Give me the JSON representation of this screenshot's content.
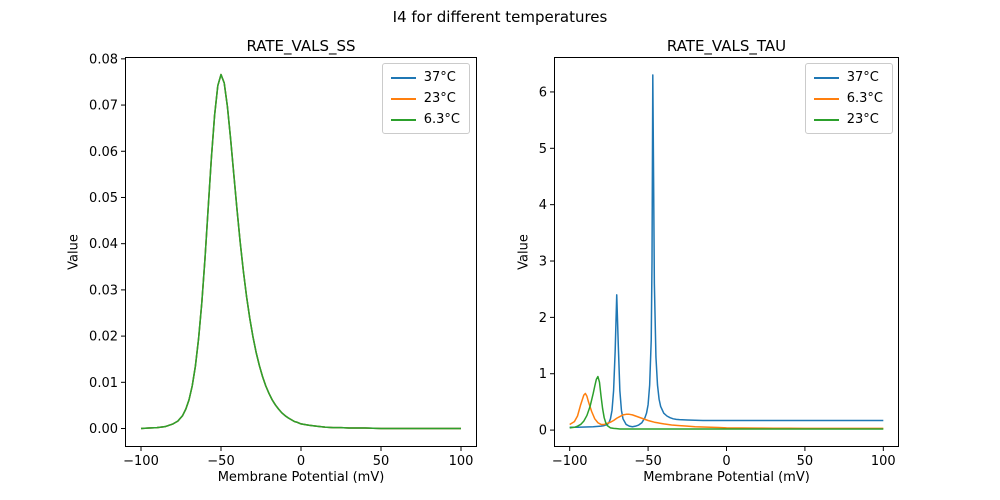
{
  "figure": {
    "suptitle": "I4 for different temperatures",
    "background": "#ffffff"
  },
  "chart_data": [
    {
      "type": "line",
      "title": "RATE_VALS_SS",
      "xlabel": "Membrane Potential (mV)",
      "ylabel": "Value",
      "xlim": [
        -110,
        110
      ],
      "ylim": [
        -0.004,
        0.0804
      ],
      "xticks": [
        -100,
        -50,
        0,
        50,
        100
      ],
      "xticklabels": [
        "−100",
        "−50",
        "0",
        "50",
        "100"
      ],
      "yticks": [
        0,
        0.01,
        0.02,
        0.03,
        0.04,
        0.05,
        0.06,
        0.07,
        0.08
      ],
      "yticklabels": [
        "0.00",
        "0.01",
        "0.02",
        "0.03",
        "0.04",
        "0.05",
        "0.06",
        "0.07",
        "0.08"
      ],
      "grid": false,
      "legend_position": "upper right",
      "note": "All three temperature curves overlap exactly; green (6.3°C, drawn last) is visible on top. Peak ≈ 0.0766 at −50 mV.",
      "series": [
        {
          "name": "37°C",
          "color": "#1f77b4",
          "x": [
            -100,
            -95,
            -90,
            -85,
            -80,
            -77,
            -74,
            -72,
            -70,
            -68,
            -66,
            -64,
            -62,
            -60,
            -58,
            -56,
            -54,
            -52,
            -50,
            -48,
            -46,
            -44,
            -42,
            -40,
            -38,
            -36,
            -34,
            -32,
            -30,
            -28,
            -26,
            -24,
            -22,
            -20,
            -18,
            -16,
            -14,
            -12,
            -10,
            -8,
            -6,
            -4,
            -2,
            0,
            5,
            10,
            15,
            20,
            25,
            30,
            40,
            50,
            60,
            70,
            80,
            90,
            100
          ],
          "y": [
            0.0,
            0.0001,
            0.0002,
            0.0004,
            0.001,
            0.0016,
            0.0028,
            0.0042,
            0.0062,
            0.0092,
            0.0135,
            0.0195,
            0.0272,
            0.0368,
            0.0478,
            0.0586,
            0.0678,
            0.0742,
            0.0766,
            0.0748,
            0.0697,
            0.0627,
            0.055,
            0.0474,
            0.0403,
            0.034,
            0.0285,
            0.0238,
            0.0198,
            0.0164,
            0.0136,
            0.0112,
            0.0092,
            0.0076,
            0.0062,
            0.0051,
            0.0042,
            0.0034,
            0.0028,
            0.0023,
            0.0019,
            0.0015,
            0.0013,
            0.001,
            0.0007,
            0.0005,
            0.0003,
            0.0002,
            0.0002,
            0.0001,
            0.0001,
            0.0,
            0.0,
            0.0,
            0.0,
            0.0,
            0.0
          ]
        },
        {
          "name": "23°C",
          "color": "#ff7f0e",
          "x": [
            -100,
            -95,
            -90,
            -85,
            -80,
            -77,
            -74,
            -72,
            -70,
            -68,
            -66,
            -64,
            -62,
            -60,
            -58,
            -56,
            -54,
            -52,
            -50,
            -48,
            -46,
            -44,
            -42,
            -40,
            -38,
            -36,
            -34,
            -32,
            -30,
            -28,
            -26,
            -24,
            -22,
            -20,
            -18,
            -16,
            -14,
            -12,
            -10,
            -8,
            -6,
            -4,
            -2,
            0,
            5,
            10,
            15,
            20,
            25,
            30,
            40,
            50,
            60,
            70,
            80,
            90,
            100
          ],
          "y": [
            0.0,
            0.0001,
            0.0002,
            0.0004,
            0.001,
            0.0016,
            0.0028,
            0.0042,
            0.0062,
            0.0092,
            0.0135,
            0.0195,
            0.0272,
            0.0368,
            0.0478,
            0.0586,
            0.0678,
            0.0742,
            0.0766,
            0.0748,
            0.0697,
            0.0627,
            0.055,
            0.0474,
            0.0403,
            0.034,
            0.0285,
            0.0238,
            0.0198,
            0.0164,
            0.0136,
            0.0112,
            0.0092,
            0.0076,
            0.0062,
            0.0051,
            0.0042,
            0.0034,
            0.0028,
            0.0023,
            0.0019,
            0.0015,
            0.0013,
            0.001,
            0.0007,
            0.0005,
            0.0003,
            0.0002,
            0.0002,
            0.0001,
            0.0001,
            0.0,
            0.0,
            0.0,
            0.0,
            0.0,
            0.0
          ]
        },
        {
          "name": "6.3°C",
          "color": "#2ca02c",
          "x": [
            -100,
            -95,
            -90,
            -85,
            -80,
            -77,
            -74,
            -72,
            -70,
            -68,
            -66,
            -64,
            -62,
            -60,
            -58,
            -56,
            -54,
            -52,
            -50,
            -48,
            -46,
            -44,
            -42,
            -40,
            -38,
            -36,
            -34,
            -32,
            -30,
            -28,
            -26,
            -24,
            -22,
            -20,
            -18,
            -16,
            -14,
            -12,
            -10,
            -8,
            -6,
            -4,
            -2,
            0,
            5,
            10,
            15,
            20,
            25,
            30,
            40,
            50,
            60,
            70,
            80,
            90,
            100
          ],
          "y": [
            0.0,
            0.0001,
            0.0002,
            0.0004,
            0.001,
            0.0016,
            0.0028,
            0.0042,
            0.0062,
            0.0092,
            0.0135,
            0.0195,
            0.0272,
            0.0368,
            0.0478,
            0.0586,
            0.0678,
            0.0742,
            0.0766,
            0.0748,
            0.0697,
            0.0627,
            0.055,
            0.0474,
            0.0403,
            0.034,
            0.0285,
            0.0238,
            0.0198,
            0.0164,
            0.0136,
            0.0112,
            0.0092,
            0.0076,
            0.0062,
            0.0051,
            0.0042,
            0.0034,
            0.0028,
            0.0023,
            0.0019,
            0.0015,
            0.0013,
            0.001,
            0.0007,
            0.0005,
            0.0003,
            0.0002,
            0.0002,
            0.0001,
            0.0001,
            0.0,
            0.0,
            0.0,
            0.0,
            0.0,
            0.0
          ]
        }
      ]
    },
    {
      "type": "line",
      "title": "RATE_VALS_TAU",
      "xlabel": "Membrane Potential (mV)",
      "ylabel": "Value",
      "xlim": [
        -110,
        110
      ],
      "ylim": [
        -0.3,
        6.62
      ],
      "xticks": [
        -100,
        -50,
        0,
        50,
        100
      ],
      "xticklabels": [
        "−100",
        "−50",
        "0",
        "50",
        "100"
      ],
      "yticks": [
        0,
        1,
        2,
        3,
        4,
        5,
        6
      ],
      "yticklabels": [
        "0",
        "1",
        "2",
        "3",
        "4",
        "5",
        "6"
      ],
      "grid": false,
      "legend_position": "upper right",
      "note": "Blue has narrow spikes: ≈2.4 at −70 mV and ≈6.3 at −47 mV, plateau ≈0.17 above −40 mV. Orange peak ≈0.65 at −90 mV with broad bump ≈0.28 near −64 mV. Green sharp peak ≈0.95 at −82 mV then flat ≈0.02.",
      "series": [
        {
          "name": "37°C",
          "color": "#1f77b4",
          "x": [
            -100,
            -95,
            -90,
            -85,
            -80,
            -78,
            -76,
            -75,
            -74,
            -73,
            -72,
            -71,
            -70,
            -69,
            -68,
            -67,
            -66,
            -64,
            -62,
            -60,
            -58,
            -56,
            -54,
            -52,
            -51,
            -50,
            -49,
            -48,
            -47.5,
            -47,
            -46.5,
            -46,
            -45,
            -44,
            -43,
            -42,
            -40,
            -38,
            -36,
            -34,
            -32,
            -30,
            -25,
            -20,
            -15,
            -10,
            -5,
            0,
            10,
            20,
            30,
            40,
            50,
            60,
            70,
            80,
            90,
            100
          ],
          "y": [
            0.05,
            0.05,
            0.055,
            0.06,
            0.07,
            0.08,
            0.1,
            0.13,
            0.2,
            0.35,
            0.7,
            1.4,
            2.4,
            1.5,
            0.7,
            0.35,
            0.2,
            0.1,
            0.07,
            0.06,
            0.07,
            0.09,
            0.13,
            0.22,
            0.3,
            0.45,
            0.8,
            1.6,
            3.0,
            6.3,
            4.5,
            2.6,
            1.3,
            0.8,
            0.55,
            0.42,
            0.3,
            0.25,
            0.22,
            0.2,
            0.19,
            0.185,
            0.18,
            0.175,
            0.17,
            0.17,
            0.17,
            0.17,
            0.17,
            0.17,
            0.17,
            0.17,
            0.17,
            0.17,
            0.17,
            0.17,
            0.17,
            0.17
          ]
        },
        {
          "name": "6.3°C",
          "color": "#ff7f0e",
          "x": [
            -100,
            -97,
            -95,
            -93,
            -91,
            -90,
            -89,
            -88,
            -86,
            -84,
            -82,
            -80,
            -78,
            -76,
            -74,
            -72,
            -70,
            -68,
            -66,
            -64,
            -62,
            -60,
            -58,
            -56,
            -54,
            -52,
            -50,
            -48,
            -46,
            -44,
            -42,
            -40,
            -35,
            -30,
            -25,
            -20,
            -15,
            -10,
            -5,
            0,
            10,
            20,
            30,
            40,
            50,
            60,
            70,
            80,
            90,
            100
          ],
          "y": [
            0.1,
            0.15,
            0.25,
            0.45,
            0.62,
            0.65,
            0.6,
            0.5,
            0.33,
            0.2,
            0.13,
            0.1,
            0.1,
            0.12,
            0.14,
            0.17,
            0.21,
            0.24,
            0.27,
            0.28,
            0.28,
            0.27,
            0.25,
            0.23,
            0.21,
            0.19,
            0.17,
            0.155,
            0.14,
            0.13,
            0.12,
            0.11,
            0.09,
            0.08,
            0.07,
            0.06,
            0.055,
            0.05,
            0.045,
            0.04,
            0.038,
            0.035,
            0.033,
            0.032,
            0.031,
            0.03,
            0.03,
            0.03,
            0.03,
            0.03
          ]
        },
        {
          "name": "23°C",
          "color": "#2ca02c",
          "x": [
            -100,
            -97,
            -95,
            -93,
            -91,
            -89,
            -87,
            -85,
            -84,
            -83,
            -82,
            -81,
            -80,
            -79,
            -78,
            -77,
            -76,
            -74,
            -72,
            -70,
            -68,
            -65,
            -60,
            -55,
            -50,
            -45,
            -40,
            -30,
            -20,
            -10,
            0,
            20,
            40,
            60,
            80,
            100
          ],
          "y": [
            0.04,
            0.05,
            0.07,
            0.1,
            0.16,
            0.26,
            0.42,
            0.65,
            0.78,
            0.9,
            0.95,
            0.85,
            0.6,
            0.38,
            0.22,
            0.13,
            0.08,
            0.04,
            0.03,
            0.025,
            0.02,
            0.02,
            0.02,
            0.02,
            0.02,
            0.02,
            0.02,
            0.02,
            0.02,
            0.02,
            0.02,
            0.02,
            0.02,
            0.02,
            0.02,
            0.02
          ]
        }
      ]
    }
  ]
}
